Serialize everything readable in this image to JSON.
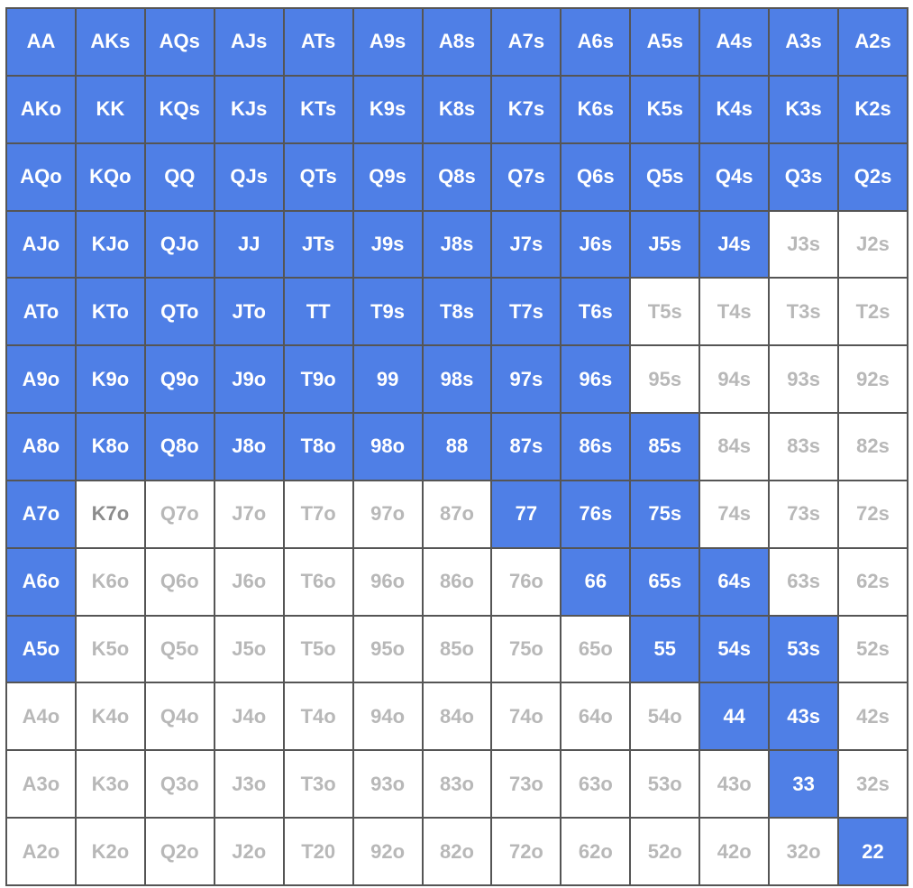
{
  "colors": {
    "selected": "#4f7fe6",
    "selected_text": "#ffffff",
    "unselected": "#ffffff",
    "unselected_text": "#b8b8b8",
    "grid_line": "#555555"
  },
  "grid": [
    [
      {
        "label": "AA",
        "selected": true
      },
      {
        "label": "AKs",
        "selected": true
      },
      {
        "label": "AQs",
        "selected": true
      },
      {
        "label": "AJs",
        "selected": true
      },
      {
        "label": "ATs",
        "selected": true
      },
      {
        "label": "A9s",
        "selected": true
      },
      {
        "label": "A8s",
        "selected": true
      },
      {
        "label": "A7s",
        "selected": true
      },
      {
        "label": "A6s",
        "selected": true
      },
      {
        "label": "A5s",
        "selected": true
      },
      {
        "label": "A4s",
        "selected": true
      },
      {
        "label": "A3s",
        "selected": true
      },
      {
        "label": "A2s",
        "selected": true
      }
    ],
    [
      {
        "label": "AKo",
        "selected": true
      },
      {
        "label": "KK",
        "selected": true
      },
      {
        "label": "KQs",
        "selected": true
      },
      {
        "label": "KJs",
        "selected": true
      },
      {
        "label": "KTs",
        "selected": true
      },
      {
        "label": "K9s",
        "selected": true
      },
      {
        "label": "K8s",
        "selected": true
      },
      {
        "label": "K7s",
        "selected": true
      },
      {
        "label": "K6s",
        "selected": true
      },
      {
        "label": "K5s",
        "selected": true
      },
      {
        "label": "K4s",
        "selected": true
      },
      {
        "label": "K3s",
        "selected": true
      },
      {
        "label": "K2s",
        "selected": true
      }
    ],
    [
      {
        "label": "AQo",
        "selected": true
      },
      {
        "label": "KQo",
        "selected": true
      },
      {
        "label": "QQ",
        "selected": true
      },
      {
        "label": "QJs",
        "selected": true
      },
      {
        "label": "QTs",
        "selected": true
      },
      {
        "label": "Q9s",
        "selected": true
      },
      {
        "label": "Q8s",
        "selected": true
      },
      {
        "label": "Q7s",
        "selected": true
      },
      {
        "label": "Q6s",
        "selected": true
      },
      {
        "label": "Q5s",
        "selected": true
      },
      {
        "label": "Q4s",
        "selected": true
      },
      {
        "label": "Q3s",
        "selected": true
      },
      {
        "label": "Q2s",
        "selected": true
      }
    ],
    [
      {
        "label": "AJo",
        "selected": true
      },
      {
        "label": "KJo",
        "selected": true
      },
      {
        "label": "QJo",
        "selected": true
      },
      {
        "label": "JJ",
        "selected": true
      },
      {
        "label": "JTs",
        "selected": true
      },
      {
        "label": "J9s",
        "selected": true
      },
      {
        "label": "J8s",
        "selected": true
      },
      {
        "label": "J7s",
        "selected": true
      },
      {
        "label": "J6s",
        "selected": true
      },
      {
        "label": "J5s",
        "selected": true
      },
      {
        "label": "J4s",
        "selected": true
      },
      {
        "label": "J3s",
        "selected": false
      },
      {
        "label": "J2s",
        "selected": false
      }
    ],
    [
      {
        "label": "ATo",
        "selected": true
      },
      {
        "label": "KTo",
        "selected": true
      },
      {
        "label": "QTo",
        "selected": true
      },
      {
        "label": "JTo",
        "selected": true
      },
      {
        "label": "TT",
        "selected": true
      },
      {
        "label": "T9s",
        "selected": true
      },
      {
        "label": "T8s",
        "selected": true
      },
      {
        "label": "T7s",
        "selected": true
      },
      {
        "label": "T6s",
        "selected": true
      },
      {
        "label": "T5s",
        "selected": false
      },
      {
        "label": "T4s",
        "selected": false
      },
      {
        "label": "T3s",
        "selected": false
      },
      {
        "label": "T2s",
        "selected": false
      }
    ],
    [
      {
        "label": "A9o",
        "selected": true
      },
      {
        "label": "K9o",
        "selected": true
      },
      {
        "label": "Q9o",
        "selected": true
      },
      {
        "label": "J9o",
        "selected": true
      },
      {
        "label": "T9o",
        "selected": true
      },
      {
        "label": "99",
        "selected": true
      },
      {
        "label": "98s",
        "selected": true
      },
      {
        "label": "97s",
        "selected": true
      },
      {
        "label": "96s",
        "selected": true
      },
      {
        "label": "95s",
        "selected": false
      },
      {
        "label": "94s",
        "selected": false
      },
      {
        "label": "93s",
        "selected": false
      },
      {
        "label": "92s",
        "selected": false
      }
    ],
    [
      {
        "label": "A8o",
        "selected": true
      },
      {
        "label": "K8o",
        "selected": true
      },
      {
        "label": "Q8o",
        "selected": true
      },
      {
        "label": "J8o",
        "selected": true
      },
      {
        "label": "T8o",
        "selected": true
      },
      {
        "label": "98o",
        "selected": true
      },
      {
        "label": "88",
        "selected": true
      },
      {
        "label": "87s",
        "selected": true
      },
      {
        "label": "86s",
        "selected": true
      },
      {
        "label": "85s",
        "selected": true
      },
      {
        "label": "84s",
        "selected": false
      },
      {
        "label": "83s",
        "selected": false
      },
      {
        "label": "82s",
        "selected": false
      }
    ],
    [
      {
        "label": "A7o",
        "selected": true
      },
      {
        "label": "K7o",
        "selected": false,
        "mid": true
      },
      {
        "label": "Q7o",
        "selected": false
      },
      {
        "label": "J7o",
        "selected": false
      },
      {
        "label": "T7o",
        "selected": false
      },
      {
        "label": "97o",
        "selected": false
      },
      {
        "label": "87o",
        "selected": false
      },
      {
        "label": "77",
        "selected": true
      },
      {
        "label": "76s",
        "selected": true
      },
      {
        "label": "75s",
        "selected": true
      },
      {
        "label": "74s",
        "selected": false
      },
      {
        "label": "73s",
        "selected": false
      },
      {
        "label": "72s",
        "selected": false
      }
    ],
    [
      {
        "label": "A6o",
        "selected": true
      },
      {
        "label": "K6o",
        "selected": false
      },
      {
        "label": "Q6o",
        "selected": false
      },
      {
        "label": "J6o",
        "selected": false
      },
      {
        "label": "T6o",
        "selected": false
      },
      {
        "label": "96o",
        "selected": false
      },
      {
        "label": "86o",
        "selected": false
      },
      {
        "label": "76o",
        "selected": false
      },
      {
        "label": "66",
        "selected": true
      },
      {
        "label": "65s",
        "selected": true
      },
      {
        "label": "64s",
        "selected": true
      },
      {
        "label": "63s",
        "selected": false
      },
      {
        "label": "62s",
        "selected": false
      }
    ],
    [
      {
        "label": "A5o",
        "selected": true
      },
      {
        "label": "K5o",
        "selected": false
      },
      {
        "label": "Q5o",
        "selected": false
      },
      {
        "label": "J5o",
        "selected": false
      },
      {
        "label": "T5o",
        "selected": false
      },
      {
        "label": "95o",
        "selected": false
      },
      {
        "label": "85o",
        "selected": false
      },
      {
        "label": "75o",
        "selected": false
      },
      {
        "label": "65o",
        "selected": false
      },
      {
        "label": "55",
        "selected": true
      },
      {
        "label": "54s",
        "selected": true
      },
      {
        "label": "53s",
        "selected": true
      },
      {
        "label": "52s",
        "selected": false
      }
    ],
    [
      {
        "label": "A4o",
        "selected": false
      },
      {
        "label": "K4o",
        "selected": false
      },
      {
        "label": "Q4o",
        "selected": false
      },
      {
        "label": "J4o",
        "selected": false
      },
      {
        "label": "T4o",
        "selected": false
      },
      {
        "label": "94o",
        "selected": false
      },
      {
        "label": "84o",
        "selected": false
      },
      {
        "label": "74o",
        "selected": false
      },
      {
        "label": "64o",
        "selected": false
      },
      {
        "label": "54o",
        "selected": false
      },
      {
        "label": "44",
        "selected": true
      },
      {
        "label": "43s",
        "selected": true
      },
      {
        "label": "42s",
        "selected": false
      }
    ],
    [
      {
        "label": "A3o",
        "selected": false
      },
      {
        "label": "K3o",
        "selected": false
      },
      {
        "label": "Q3o",
        "selected": false
      },
      {
        "label": "J3o",
        "selected": false
      },
      {
        "label": "T3o",
        "selected": false
      },
      {
        "label": "93o",
        "selected": false
      },
      {
        "label": "83o",
        "selected": false
      },
      {
        "label": "73o",
        "selected": false
      },
      {
        "label": "63o",
        "selected": false
      },
      {
        "label": "53o",
        "selected": false
      },
      {
        "label": "43o",
        "selected": false
      },
      {
        "label": "33",
        "selected": true
      },
      {
        "label": "32s",
        "selected": false
      }
    ],
    [
      {
        "label": "A2o",
        "selected": false
      },
      {
        "label": "K2o",
        "selected": false
      },
      {
        "label": "Q2o",
        "selected": false
      },
      {
        "label": "J2o",
        "selected": false
      },
      {
        "label": "T20",
        "selected": false
      },
      {
        "label": "92o",
        "selected": false
      },
      {
        "label": "82o",
        "selected": false
      },
      {
        "label": "72o",
        "selected": false
      },
      {
        "label": "62o",
        "selected": false
      },
      {
        "label": "52o",
        "selected": false
      },
      {
        "label": "42o",
        "selected": false
      },
      {
        "label": "32o",
        "selected": false
      },
      {
        "label": "22",
        "selected": true
      }
    ]
  ]
}
